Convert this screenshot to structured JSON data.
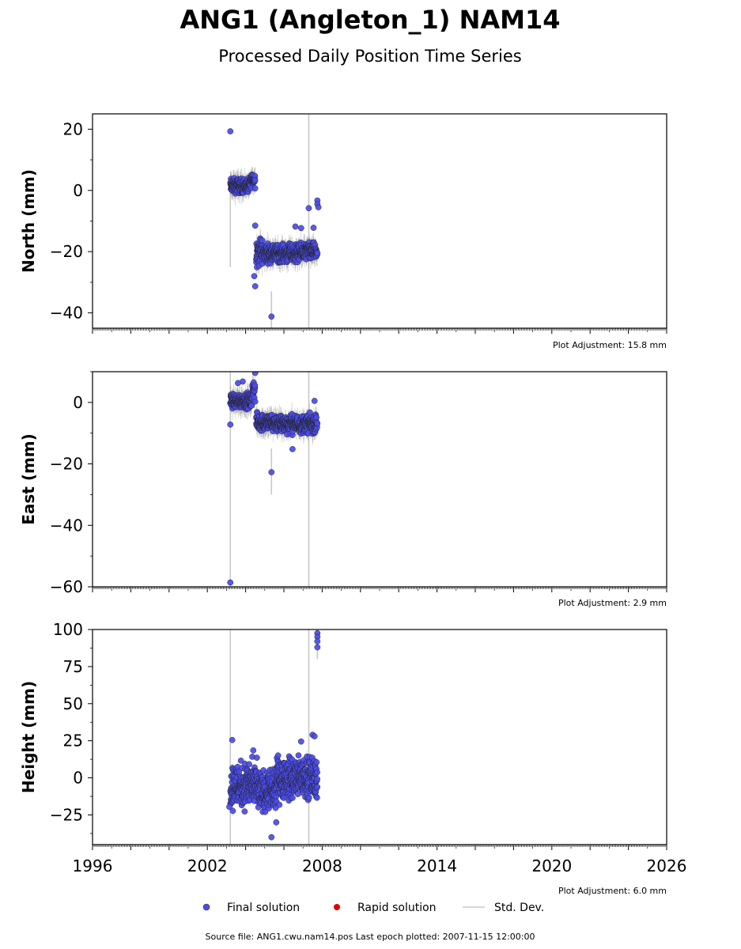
{
  "header": {
    "title": "ANG1 (Angleton_1) NAM14",
    "subtitle": "Processed Daily Position Time Series"
  },
  "legend": {
    "final": "Final solution",
    "rapid": "Rapid solution",
    "stddev": "Std. Dev."
  },
  "footer": {
    "source": "Source file: ANG1.cwu.nam14.pos  Last epoch plotted: 2007-11-15 12:00:00"
  },
  "colors": {
    "final": "#4b4bf0",
    "rapid": "#e00000",
    "stddev": "#c8c8c8"
  },
  "chart_data": [
    {
      "type": "scatter",
      "panel": "north",
      "ylabel": "North (mm)",
      "ylim": [
        -45,
        25
      ],
      "yticks": [
        20,
        0,
        -20,
        -40
      ],
      "xlim": [
        1996,
        2026
      ],
      "adjustment": "Plot Adjustment: 15.8 mm",
      "segments": [
        {
          "x0": 2003.2,
          "x1": 2004.25,
          "center": 1.5,
          "amp": 2.5
        },
        {
          "x0": 2004.25,
          "x1": 2004.5,
          "center": 3.5,
          "amp": 2.5
        },
        {
          "x0": 2004.55,
          "x1": 2004.9,
          "center": -20,
          "amp": 5
        },
        {
          "x0": 2004.9,
          "x1": 2006.9,
          "center": -20.5,
          "amp": 3
        },
        {
          "x0": 2006.9,
          "x1": 2007.75,
          "center": -20,
          "amp": 3
        }
      ],
      "outliers": [
        {
          "x": 2003.2,
          "y": 19.3
        },
        {
          "x": 2005.35,
          "y": -41.2
        },
        {
          "x": 2004.5,
          "y": -31.3
        },
        {
          "x": 2004.45,
          "y": -28
        },
        {
          "x": 2004.5,
          "y": -11.5
        },
        {
          "x": 2006.6,
          "y": -11.8
        },
        {
          "x": 2006.9,
          "y": -12.3
        },
        {
          "x": 2007.3,
          "y": -5.8
        },
        {
          "x": 2007.55,
          "y": -12.2
        },
        {
          "x": 2007.75,
          "y": -3.3
        },
        {
          "x": 2007.75,
          "y": -4.5
        },
        {
          "x": 2007.8,
          "y": -5.5
        }
      ],
      "stddev_lines": [
        {
          "x": 2003.2,
          "y0": -25,
          "y1": 2
        },
        {
          "x": 2005.35,
          "y0": -46,
          "y1": -33
        },
        {
          "x": 2007.3,
          "y0": -45,
          "y1": 25
        }
      ]
    },
    {
      "type": "scatter",
      "panel": "east",
      "ylabel": "East (mm)",
      "ylim": [
        -60,
        10
      ],
      "yticks": [
        0,
        -20,
        -40,
        -60
      ],
      "xlim": [
        1996,
        2026
      ],
      "adjustment": "Plot Adjustment: 2.9 mm",
      "segments": [
        {
          "x0": 2003.2,
          "x1": 2004.35,
          "center": 0.5,
          "amp": 2.5
        },
        {
          "x0": 2004.35,
          "x1": 2004.5,
          "center": 4,
          "amp": 4
        },
        {
          "x0": 2004.55,
          "x1": 2005.6,
          "center": -6.5,
          "amp": 3
        },
        {
          "x0": 2005.6,
          "x1": 2007.75,
          "center": -7,
          "amp": 3
        }
      ],
      "outliers": [
        {
          "x": 2003.2,
          "y": -58.6
        },
        {
          "x": 2005.35,
          "y": -22.7
        },
        {
          "x": 2006.45,
          "y": -15.2
        },
        {
          "x": 2003.2,
          "y": -7.2
        },
        {
          "x": 2004.5,
          "y": 9.6
        },
        {
          "x": 2003.85,
          "y": 6.8
        },
        {
          "x": 2003.6,
          "y": 6.3
        },
        {
          "x": 2007.6,
          "y": 0.5
        }
      ],
      "stddev_lines": [
        {
          "x": 2003.2,
          "y0": -60,
          "y1": 10
        },
        {
          "x": 2005.35,
          "y0": -30,
          "y1": -15
        },
        {
          "x": 2007.3,
          "y0": -60,
          "y1": 10
        }
      ]
    },
    {
      "type": "scatter",
      "panel": "height",
      "ylabel": "Height (mm)",
      "ylim": [
        -45,
        100
      ],
      "yticks": [
        100,
        75,
        50,
        25,
        0,
        -25
      ],
      "xlim": [
        1996,
        2026
      ],
      "xticks": [
        "1996",
        "2002",
        "2008",
        "2014",
        "2020",
        "2026"
      ],
      "adjustment": "Plot Adjustment: 6.0 mm",
      "segments": [
        {
          "x0": 2003.2,
          "x1": 2004.6,
          "center": -5,
          "amp": 16
        },
        {
          "x0": 2004.6,
          "x1": 2005.6,
          "center": -9,
          "amp": 14
        },
        {
          "x0": 2005.6,
          "x1": 2006.6,
          "center": 0,
          "amp": 15
        },
        {
          "x0": 2006.6,
          "x1": 2007.75,
          "center": 0,
          "amp": 14
        }
      ],
      "outliers": [
        {
          "x": 2007.75,
          "y": 97.5
        },
        {
          "x": 2007.75,
          "y": 95
        },
        {
          "x": 2007.75,
          "y": 92
        },
        {
          "x": 2007.75,
          "y": 88
        },
        {
          "x": 2005.35,
          "y": -40
        },
        {
          "x": 2005.6,
          "y": -30
        },
        {
          "x": 2004.4,
          "y": 18.5
        },
        {
          "x": 2007.5,
          "y": 29
        },
        {
          "x": 2007.6,
          "y": 28
        },
        {
          "x": 2006.9,
          "y": 24.5
        },
        {
          "x": 2003.3,
          "y": 25.5
        },
        {
          "x": 2003.15,
          "y": -19.5
        }
      ],
      "stddev_lines": [
        {
          "x": 2003.2,
          "y0": -45,
          "y1": 100
        },
        {
          "x": 2007.3,
          "y0": -45,
          "y1": 100
        },
        {
          "x": 2007.75,
          "y0": 80,
          "y1": 100
        }
      ]
    }
  ]
}
